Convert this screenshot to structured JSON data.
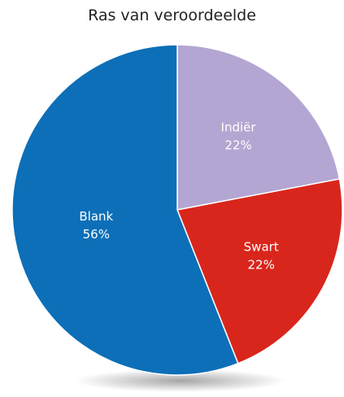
{
  "chart_data": {
    "type": "pie",
    "title": "Ras van veroordeelde",
    "slices": [
      {
        "label": "Indiër",
        "value": 22,
        "value_label": "22%",
        "color": "#b3a6d2"
      },
      {
        "label": "Swart",
        "value": 22,
        "value_label": "22%",
        "color": "#d9261c"
      },
      {
        "label": "Blank",
        "value": 56,
        "value_label": "56%",
        "color": "#0c6fb8"
      }
    ],
    "start_angle_deg": 0,
    "direction": "clockwise",
    "legend": "none"
  }
}
